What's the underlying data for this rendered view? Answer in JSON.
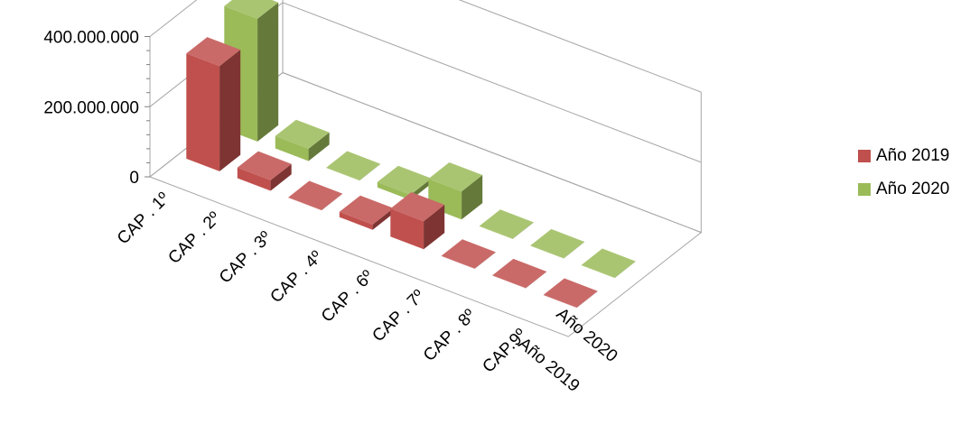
{
  "chart_data": {
    "type": "bar",
    "subtype": "3d-clustered-depth",
    "title": "",
    "xlabel": "",
    "ylabel": "",
    "ylim": [
      0,
      400000000
    ],
    "yticks": [
      "0",
      "200.000.000",
      "400.000.000"
    ],
    "categories": [
      "CAP . 1º",
      "CAP . 2º",
      "CAP . 3º",
      "CAP . 4º",
      "CAP . 6º",
      "CAP . 7º",
      "CAP . 8º",
      "CAP.9º"
    ],
    "series": [
      {
        "name": "Año 2019",
        "color": "#C0504D",
        "values": [
          300000000,
          30000000,
          1000000,
          15000000,
          80000000,
          1000000,
          1000000,
          1000000
        ]
      },
      {
        "name": "Año 2020",
        "color": "#9BBB59",
        "values": [
          350000000,
          35000000,
          1000000,
          15000000,
          80000000,
          1000000,
          1000000,
          1000000
        ]
      }
    ],
    "depth_labels": [
      "Año 2019",
      "Año 2020"
    ],
    "legend_position": "right",
    "grid": true
  }
}
